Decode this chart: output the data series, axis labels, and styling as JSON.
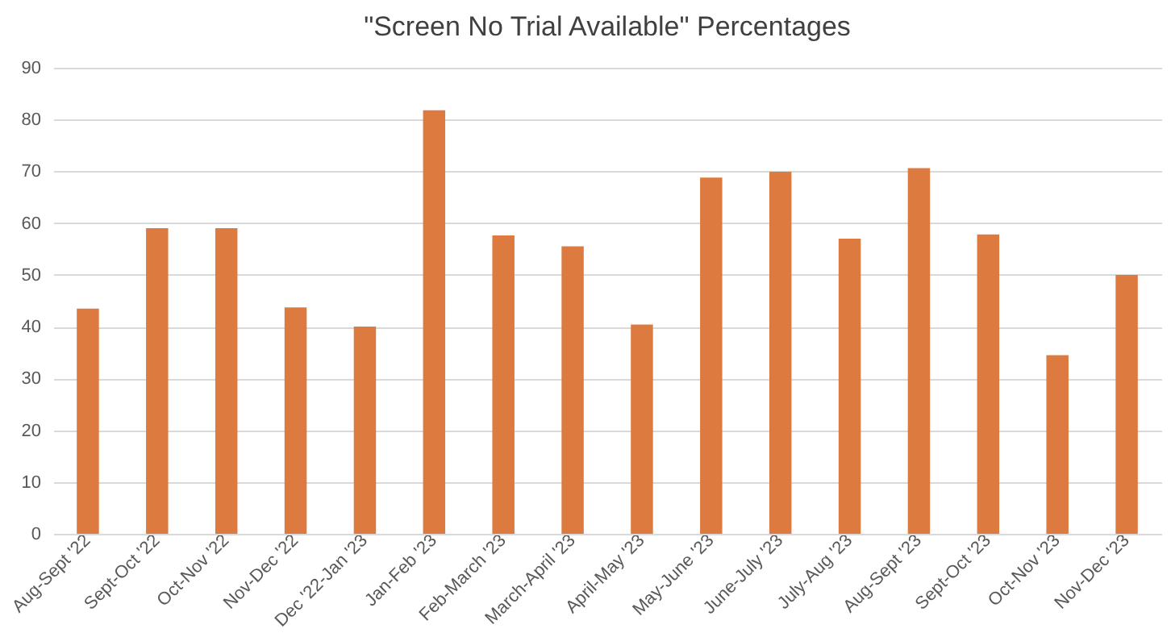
{
  "chart_data": {
    "type": "bar",
    "title": "\"Screen No Trial Available\" Percentages",
    "categories": [
      "Aug-Sept '22",
      "Sept-Oct '22",
      "Oct-Nov '22",
      "Nov-Dec '22",
      "Dec '22-Jan '23",
      "Jan-Feb '23",
      "Feb-March '23",
      "March-April '23",
      "April-May '23",
      "May-June '23",
      "June-July '23",
      "July-Aug '23",
      "Aug-Sept '23",
      "Sept-Oct '23",
      "Oct-Nov '23",
      "Nov-Dec '23"
    ],
    "values": [
      43.5,
      59,
      59,
      43.7,
      40,
      81.8,
      57.6,
      55.5,
      40.4,
      68.8,
      69.9,
      57,
      70.6,
      57.8,
      34.5,
      50
    ],
    "color": "#dd7a3f",
    "ylim": [
      0,
      90
    ],
    "yticks": [
      0,
      10,
      20,
      30,
      40,
      50,
      60,
      70,
      80,
      90
    ],
    "grid": "y"
  }
}
